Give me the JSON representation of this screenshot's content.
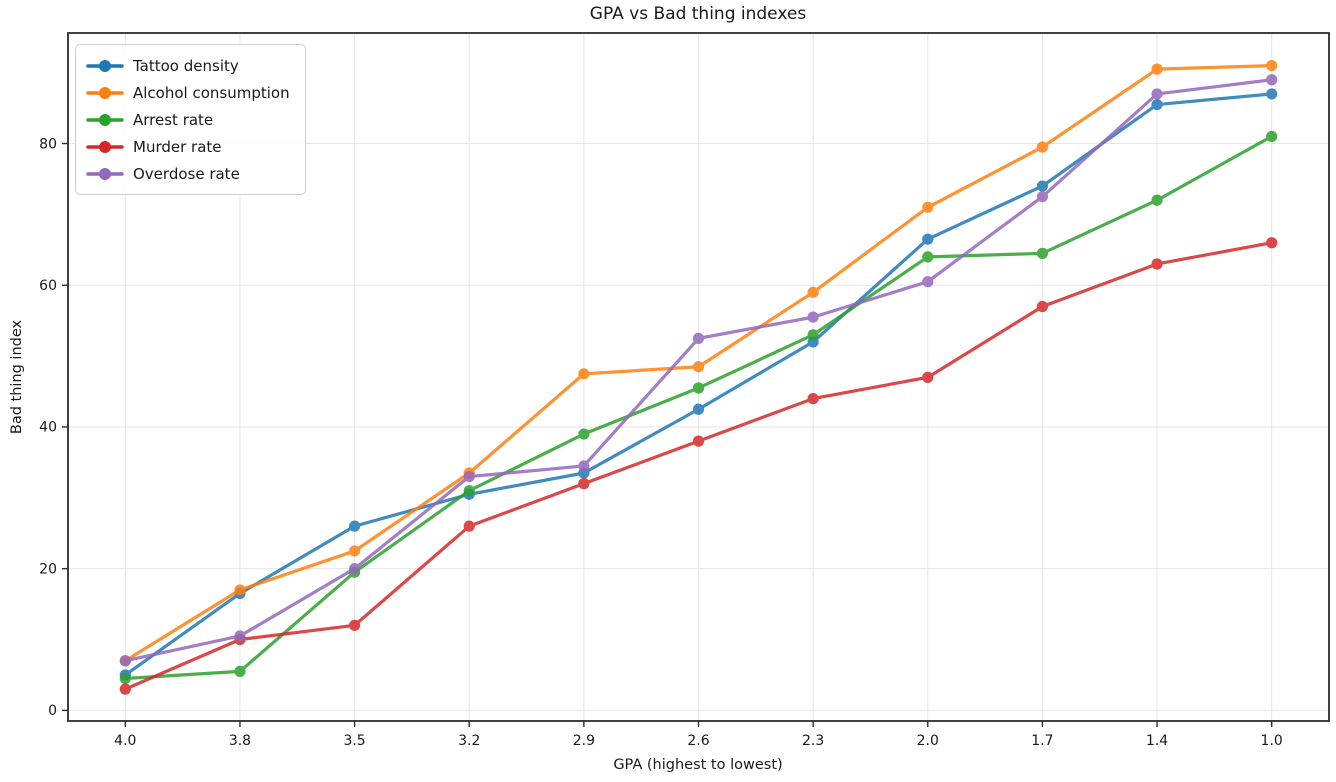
{
  "chart_data": {
    "type": "line",
    "title": "GPA vs Bad thing indexes",
    "xlabel": "GPA (highest to lowest)",
    "ylabel": "Bad thing index",
    "categories": [
      "4.0",
      "3.8",
      "3.5",
      "3.2",
      "2.9",
      "2.6",
      "2.3",
      "2.0",
      "1.7",
      "1.4",
      "1.0"
    ],
    "yticks": [
      0,
      20,
      40,
      60,
      80
    ],
    "ylim": [
      -1.5,
      95.6
    ],
    "grid": true,
    "legend_position": "upper left",
    "series": [
      {
        "name": "Tattoo density",
        "color": "#1f77b4",
        "values": [
          5,
          16.5,
          26,
          30.5,
          33.5,
          42.5,
          52,
          66.5,
          74,
          85.5,
          87
        ]
      },
      {
        "name": "Alcohol consumption",
        "color": "#ff7f0e",
        "values": [
          7,
          17,
          22.5,
          33.5,
          47.5,
          48.5,
          59,
          71,
          79.5,
          90.5,
          91
        ]
      },
      {
        "name": "Arrest rate",
        "color": "#2ca02c",
        "values": [
          4.5,
          5.5,
          19.5,
          31,
          39,
          45.5,
          53,
          64,
          64.5,
          72,
          81
        ]
      },
      {
        "name": "Murder rate",
        "color": "#d62728",
        "values": [
          3,
          10,
          12,
          26,
          32,
          38,
          44,
          47,
          57,
          63,
          66
        ]
      },
      {
        "name": "Overdose rate",
        "color": "#9467bd",
        "values": [
          7,
          10.5,
          20,
          33,
          34.5,
          52.5,
          55.5,
          60.5,
          72.5,
          87,
          89
        ]
      }
    ],
    "style": {
      "grid_color": "#e6e6e6",
      "spine_color": "#2b2b2b",
      "tick_label_color": "#1a1a1a",
      "line_opacity": 0.85
    }
  }
}
